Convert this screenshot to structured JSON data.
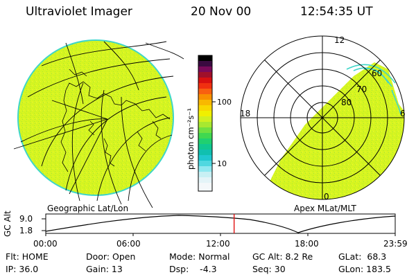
{
  "header": {
    "instrument": "Ultraviolet Imager",
    "date": "20 Nov 00",
    "time": "12:54:35 UT"
  },
  "panels": {
    "left_label": "Geographic Lat/Lon",
    "right_label": "Apex MLat/MLT"
  },
  "colorbar": {
    "units": "photon cm⁻²s⁻¹",
    "tick_100": "100",
    "tick_10": "10"
  },
  "polar_plot": {
    "mlt_top": "12",
    "mlt_left": "18",
    "mlt_right": "6",
    "mlt_bottom": "0",
    "lat_60": "60",
    "lat_70": "70",
    "lat_80": "80"
  },
  "altitude_plot": {
    "axis_label": "GC Alt",
    "y_max": "9.0",
    "y_min": "1.8",
    "x_ticks": [
      "00:00",
      "06:00",
      "12:00",
      "18:00",
      "23:59"
    ],
    "current_time_fraction": 0.539
  },
  "status": {
    "flt": "Flt: HOME",
    "ip": "IP: 36.0",
    "door": "Door: Open",
    "gain": "Gain: 13",
    "mode": "Mode: Normal",
    "dsp": "Dsp:    -4.3",
    "gc_alt": "GC Alt: 8.2 Re",
    "seq": "Seq: 30",
    "glat": "GLat:  68.3",
    "glon": "GLon: 183.5"
  },
  "colors": {
    "disk_fill": "#d7f520",
    "disk_edge": "#3fd6c8",
    "time_marker": "#e01010",
    "line": "#000000"
  }
}
